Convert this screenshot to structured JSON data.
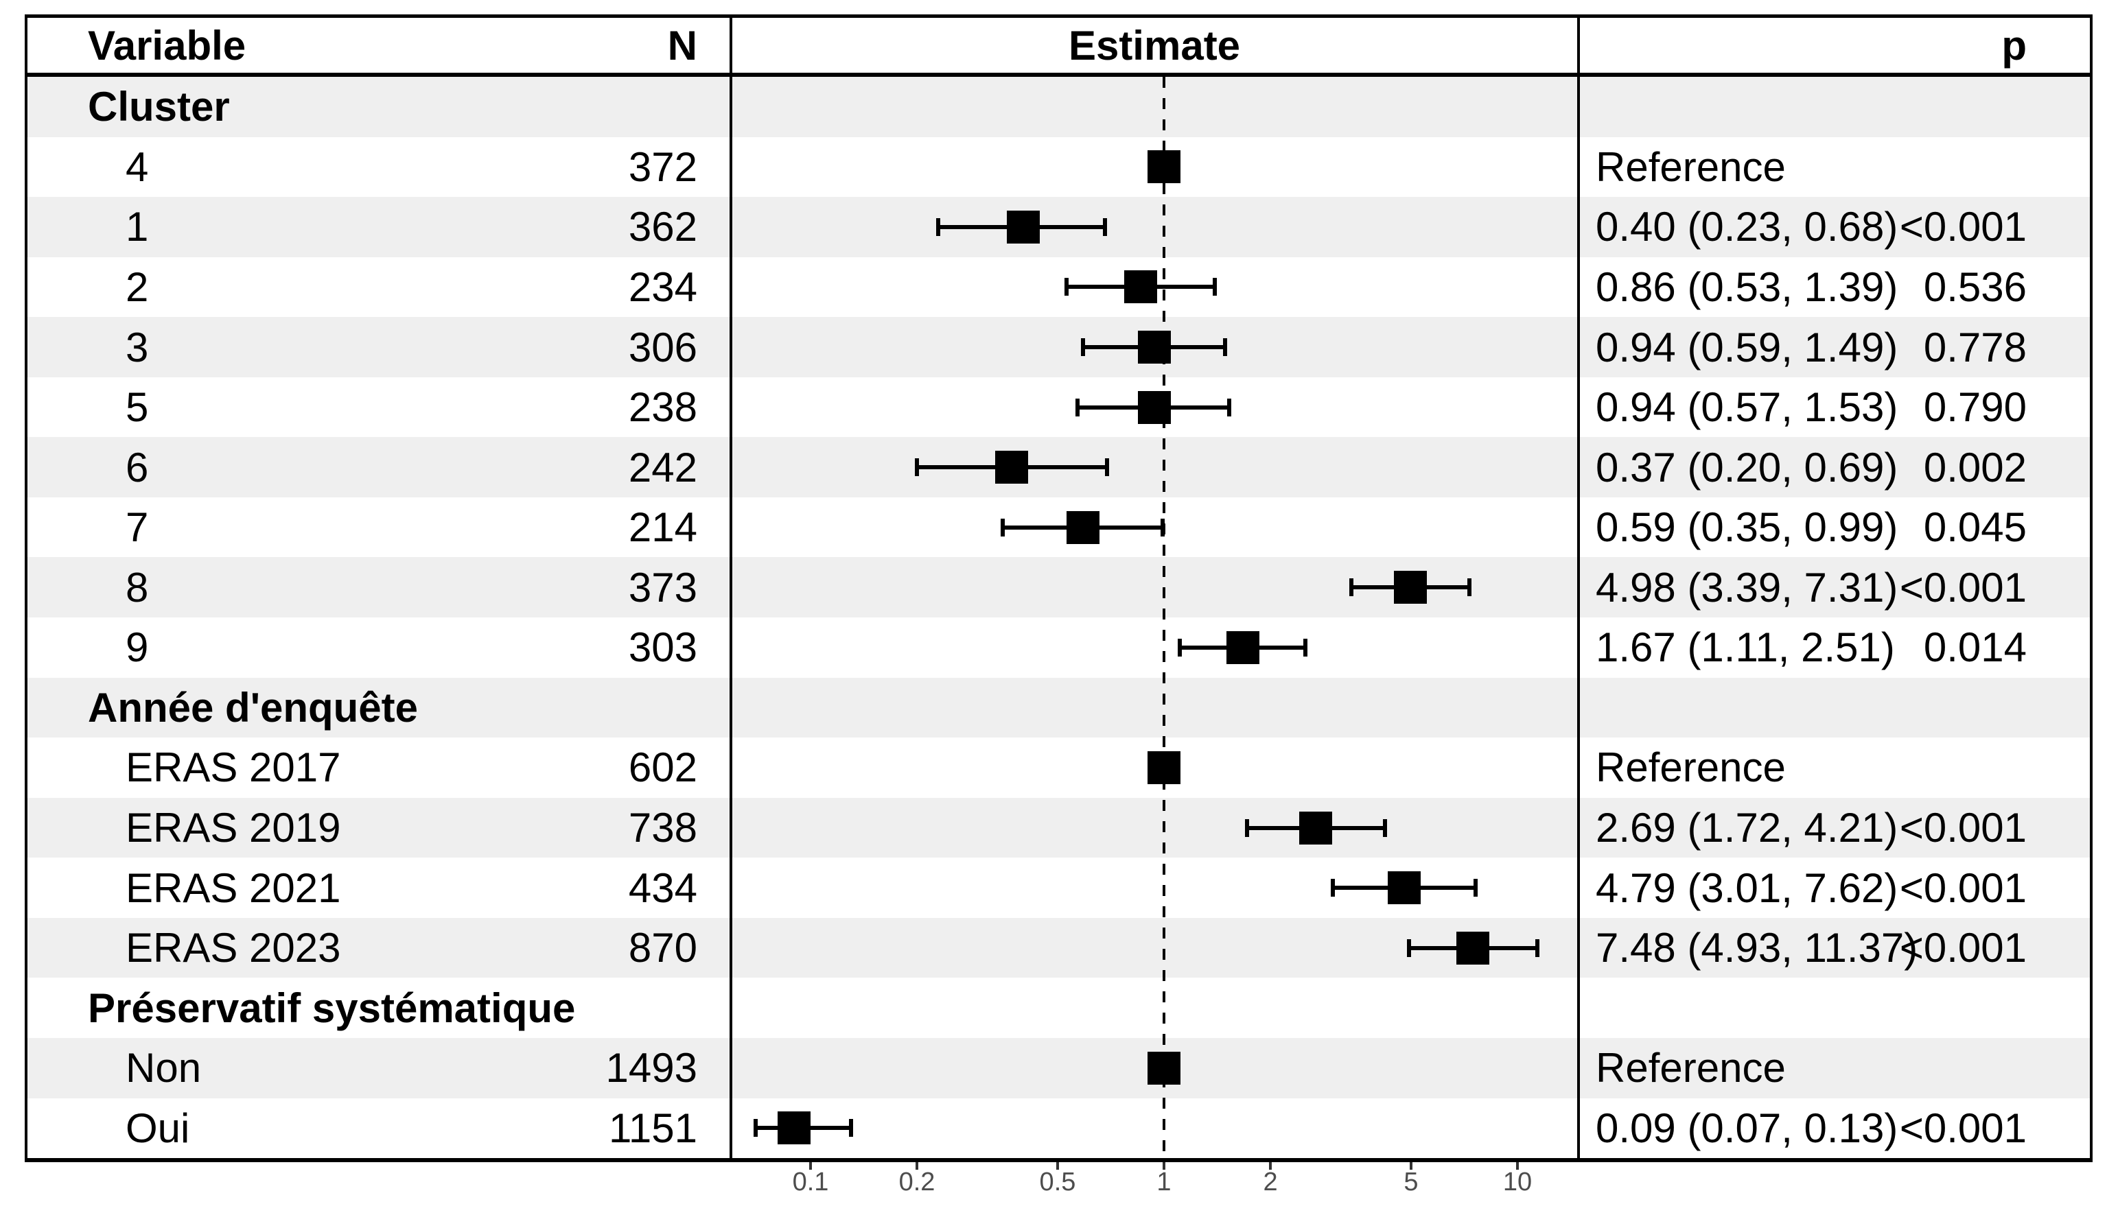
{
  "table": {
    "headers": {
      "variable": "Variable",
      "n": "N",
      "estimate": "Estimate",
      "p": "p"
    }
  },
  "colors": {
    "stripe": "#efefef",
    "frame": "#000000",
    "marker": "#000000",
    "tick": "#333333",
    "tick_label": "#4d4d4d",
    "text": "#000000"
  },
  "chart_data": {
    "type": "scatter",
    "subtype": "forest-plot",
    "title": "",
    "xlabel": "",
    "x_scale": "log10",
    "x_ticks": [
      "0.1",
      "0.2",
      "0.5",
      "1",
      "2",
      "5",
      "10"
    ],
    "x_tick_values": [
      0.1,
      0.2,
      0.5,
      1,
      2,
      5,
      10
    ],
    "x_range": [
      0.06,
      13.5
    ],
    "reference_line": 1,
    "grid": "off",
    "rows": [
      {
        "type": "group",
        "label": "Cluster",
        "shaded": true
      },
      {
        "type": "item",
        "label": "4",
        "n": "372",
        "estimate": 1,
        "reference": true,
        "ci_text": "Reference",
        "p": "",
        "shaded": false
      },
      {
        "type": "item",
        "label": "1",
        "n": "362",
        "estimate": 0.4,
        "low": 0.23,
        "high": 0.68,
        "ci_text": "0.40 (0.23, 0.68)",
        "p": "<0.001",
        "shaded": true
      },
      {
        "type": "item",
        "label": "2",
        "n": "234",
        "estimate": 0.86,
        "low": 0.53,
        "high": 1.39,
        "ci_text": "0.86 (0.53, 1.39)",
        "p": "0.536",
        "shaded": false
      },
      {
        "type": "item",
        "label": "3",
        "n": "306",
        "estimate": 0.94,
        "low": 0.59,
        "high": 1.49,
        "ci_text": "0.94 (0.59, 1.49)",
        "p": "0.778",
        "shaded": true
      },
      {
        "type": "item",
        "label": "5",
        "n": "238",
        "estimate": 0.94,
        "low": 0.57,
        "high": 1.53,
        "ci_text": "0.94 (0.57, 1.53)",
        "p": "0.790",
        "shaded": false
      },
      {
        "type": "item",
        "label": "6",
        "n": "242",
        "estimate": 0.37,
        "low": 0.2,
        "high": 0.69,
        "ci_text": "0.37 (0.20, 0.69)",
        "p": "0.002",
        "shaded": true
      },
      {
        "type": "item",
        "label": "7",
        "n": "214",
        "estimate": 0.59,
        "low": 0.35,
        "high": 0.99,
        "ci_text": "0.59 (0.35, 0.99)",
        "p": "0.045",
        "shaded": false
      },
      {
        "type": "item",
        "label": "8",
        "n": "373",
        "estimate": 4.98,
        "low": 3.39,
        "high": 7.31,
        "ci_text": "4.98 (3.39, 7.31)",
        "p": "<0.001",
        "shaded": true
      },
      {
        "type": "item",
        "label": "9",
        "n": "303",
        "estimate": 1.67,
        "low": 1.11,
        "high": 2.51,
        "ci_text": "1.67 (1.11, 2.51)",
        "p": "0.014",
        "shaded": false
      },
      {
        "type": "group",
        "label": "Année d'enquête",
        "shaded": true
      },
      {
        "type": "item",
        "label": "ERAS 2017",
        "n": "602",
        "estimate": 1,
        "reference": true,
        "ci_text": "Reference",
        "p": "",
        "shaded": false
      },
      {
        "type": "item",
        "label": "ERAS 2019",
        "n": "738",
        "estimate": 2.69,
        "low": 1.72,
        "high": 4.21,
        "ci_text": "2.69 (1.72, 4.21)",
        "p": "<0.001",
        "shaded": true
      },
      {
        "type": "item",
        "label": "ERAS 2021",
        "n": "434",
        "estimate": 4.79,
        "low": 3.01,
        "high": 7.62,
        "ci_text": "4.79 (3.01, 7.62)",
        "p": "<0.001",
        "shaded": false
      },
      {
        "type": "item",
        "label": "ERAS 2023",
        "n": "870",
        "estimate": 7.48,
        "low": 4.93,
        "high": 11.37,
        "ci_text": "7.48 (4.93, 11.37)",
        "p": "<0.001",
        "shaded": true
      },
      {
        "type": "group",
        "label": "Préservatif systématique",
        "shaded": false
      },
      {
        "type": "item",
        "label": "Non",
        "n": "1493",
        "estimate": 1,
        "reference": true,
        "ci_text": "Reference",
        "p": "",
        "shaded": true
      },
      {
        "type": "item",
        "label": "Oui",
        "n": "1151",
        "estimate": 0.09,
        "low": 0.07,
        "high": 0.13,
        "ci_text": "0.09 (0.07, 0.13)",
        "p": "<0.001",
        "shaded": false
      }
    ]
  }
}
